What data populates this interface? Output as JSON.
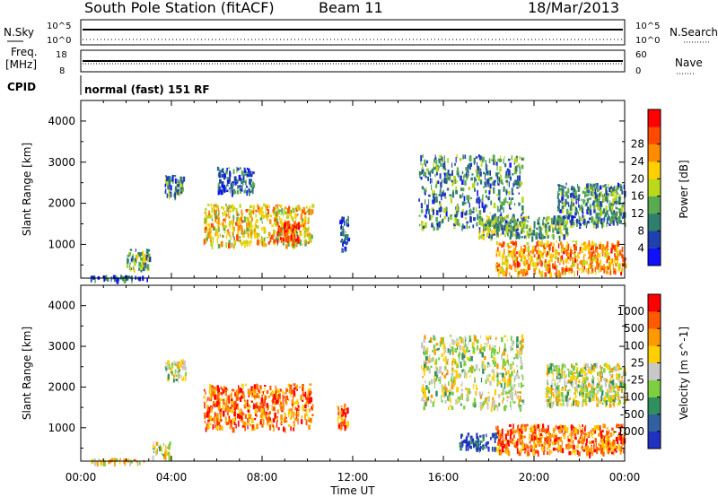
{
  "header": {
    "station": "South Pole Station (fitACF)",
    "beam": "Beam 11",
    "date": "18/Mar/2013"
  },
  "panels": {
    "nsky": {
      "left_label": "N.Sky",
      "left_ticks": [
        "10^5",
        "10^0"
      ],
      "right_label": "N.Search",
      "right_ticks": [
        "10^5",
        "10^0"
      ]
    },
    "freq": {
      "left_label_1": "Freq.",
      "left_label_2": "[MHz]",
      "left_ticks": [
        "18",
        "8"
      ],
      "right_label": "Nave",
      "right_ticks": [
        "60",
        "0"
      ]
    },
    "cpid": {
      "label": "CPID",
      "text": "normal (fast) 151 RF"
    }
  },
  "chart_data": [
    {
      "type": "heatmap",
      "title": "",
      "ylabel": "Slant Range [km]",
      "xlabel": "",
      "x_ticks": [
        "00:00",
        "04:00",
        "08:00",
        "12:00",
        "16:00",
        "20:00",
        "00:00"
      ],
      "x_range_hours": [
        0,
        24
      ],
      "ylim": [
        180,
        4500
      ],
      "y_ticks": [
        1000,
        2000,
        3000,
        4000
      ],
      "colorbar": {
        "label": "Power [dB]",
        "ticks": [
          "4",
          "8",
          "12",
          "16",
          "20",
          "24",
          "28"
        ],
        "range": [
          0,
          30
        ],
        "colors": [
          "#1010ff",
          "#2040b0",
          "#2f7f6f",
          "#5aaa50",
          "#bcd81a",
          "#ffcf00",
          "#ff8c00",
          "#ff4a00",
          "#ff0000"
        ]
      },
      "regions": [
        {
          "t0": 0.4,
          "t1": 3.0,
          "r0": 180,
          "r1": 260,
          "level": 0.2
        },
        {
          "t0": 2.0,
          "t1": 3.0,
          "r0": 400,
          "r1": 900,
          "level": 0.4
        },
        {
          "t0": 3.7,
          "t1": 4.6,
          "r0": 2200,
          "r1": 2700,
          "level": 0.3
        },
        {
          "t0": 5.4,
          "t1": 10.2,
          "r0": 1000,
          "r1": 2000,
          "level": 0.6
        },
        {
          "t0": 8.6,
          "t1": 9.6,
          "r0": 1100,
          "r1": 1600,
          "level": 0.85
        },
        {
          "t0": 6.0,
          "t1": 7.6,
          "r0": 2300,
          "r1": 2900,
          "level": 0.2
        },
        {
          "t0": 11.4,
          "t1": 11.8,
          "r0": 900,
          "r1": 1700,
          "level": 0.2
        },
        {
          "t0": 14.9,
          "t1": 19.5,
          "r0": 1400,
          "r1": 3200,
          "level": 0.3
        },
        {
          "t0": 17.5,
          "t1": 21.5,
          "r0": 1200,
          "r1": 1700,
          "level": 0.4
        },
        {
          "t0": 18.3,
          "t1": 24.0,
          "r0": 300,
          "r1": 1100,
          "level": 0.7
        },
        {
          "t0": 21.0,
          "t1": 24.0,
          "r0": 1500,
          "r1": 2500,
          "level": 0.3
        }
      ]
    },
    {
      "type": "heatmap",
      "title": "",
      "ylabel": "Slant Range [km]",
      "xlabel": "Time UT",
      "x_ticks": [
        "00:00",
        "04:00",
        "08:00",
        "12:00",
        "16:00",
        "20:00",
        "00:00"
      ],
      "x_range_hours": [
        0,
        24
      ],
      "ylim": [
        180,
        4500
      ],
      "y_ticks": [
        1000,
        2000,
        3000,
        4000
      ],
      "colorbar": {
        "label": "Velocity [m s^-1]",
        "ticks": [
          "1000",
          "500",
          "100",
          "25",
          "-25",
          "-100",
          "-500",
          "-1000"
        ],
        "range": [
          -1000,
          1000
        ],
        "colors": [
          "#2030c0",
          "#3060a0",
          "#2f8f5f",
          "#7cd040",
          "#c8c8c8",
          "#ffcf00",
          "#ff9900",
          "#ff5a00",
          "#ff0000"
        ]
      },
      "regions": [
        {
          "t0": 0.4,
          "t1": 2.8,
          "r0": 180,
          "r1": 260,
          "level": 0.6
        },
        {
          "t0": 3.1,
          "t1": 3.9,
          "r0": 300,
          "r1": 700,
          "level": 0.5
        },
        {
          "t0": 3.7,
          "t1": 4.6,
          "r0": 2200,
          "r1": 2700,
          "level": 0.5
        },
        {
          "t0": 5.4,
          "t1": 10.2,
          "r0": 1000,
          "r1": 2100,
          "level": 0.8
        },
        {
          "t0": 11.3,
          "t1": 11.8,
          "r0": 1000,
          "r1": 1600,
          "level": 0.8
        },
        {
          "t0": 15.0,
          "t1": 19.5,
          "r0": 1500,
          "r1": 3300,
          "level": 0.5
        },
        {
          "t0": 18.3,
          "t1": 24.0,
          "r0": 400,
          "r1": 1100,
          "level": 0.8
        },
        {
          "t0": 16.7,
          "t1": 18.3,
          "r0": 500,
          "r1": 900,
          "level": 0.1
        },
        {
          "t0": 20.5,
          "t1": 24.0,
          "r0": 1600,
          "r1": 2600,
          "level": 0.5
        }
      ]
    }
  ]
}
